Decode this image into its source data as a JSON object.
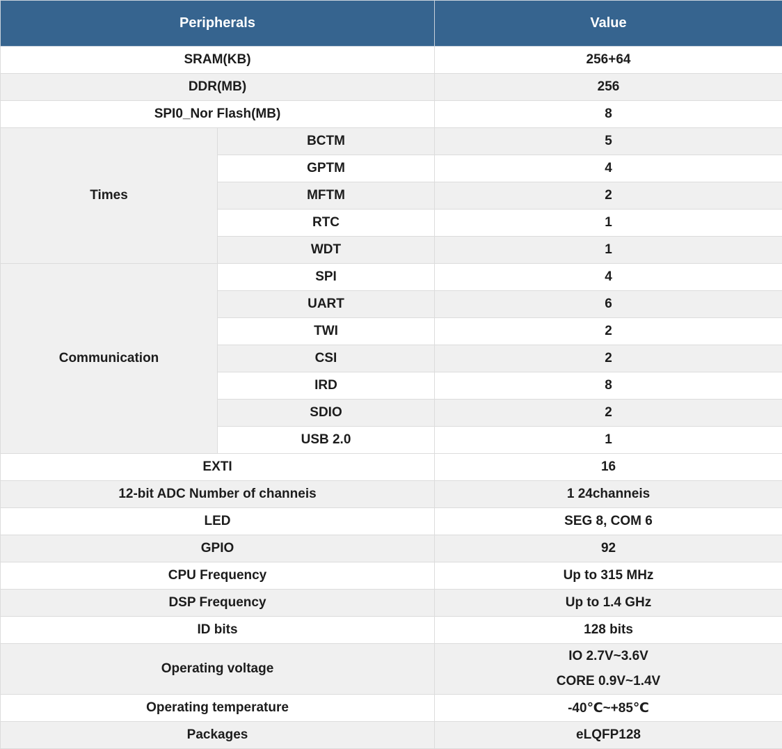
{
  "colors": {
    "header_bg": "#36648f",
    "header_text": "#ffffff",
    "alt_row_bg": "#f0f0f0",
    "border": "#dcdcdc",
    "body_text": "#1c1c1c"
  },
  "header": {
    "peripherals": "Peripherals",
    "value": "Value"
  },
  "rows_top": [
    {
      "label": "SRAM(KB)",
      "value": "256+64"
    },
    {
      "label": "DDR(MB)",
      "value": "256"
    },
    {
      "label": "SPI0_Nor Flash(MB)",
      "value": "8"
    }
  ],
  "times_group": {
    "label": "Times",
    "items": [
      {
        "label": "BCTM",
        "value": "5"
      },
      {
        "label": "GPTM",
        "value": "4"
      },
      {
        "label": "MFTM",
        "value": "2"
      },
      {
        "label": "RTC",
        "value": "1"
      },
      {
        "label": "WDT",
        "value": "1"
      }
    ]
  },
  "communication_group": {
    "label": "Communication",
    "items": [
      {
        "label": "SPI",
        "value": "4"
      },
      {
        "label": "UART",
        "value": "6"
      },
      {
        "label": "TWI",
        "value": "2"
      },
      {
        "label": "CSI",
        "value": "2"
      },
      {
        "label": "IRD",
        "value": "8"
      },
      {
        "label": "SDIO",
        "value": "2"
      },
      {
        "label": "USB 2.0",
        "value": "1"
      }
    ]
  },
  "rows_bottom": [
    {
      "label": "EXTI",
      "value": "16"
    },
    {
      "label": "12-bit ADC Number of channeis",
      "value": "1 24channeis"
    },
    {
      "label": "LED",
      "value": "SEG 8, COM 6"
    },
    {
      "label": "GPIO",
      "value": "92"
    },
    {
      "label": "CPU Frequency",
      "value": "Up to 315 MHz"
    },
    {
      "label": "DSP Frequency",
      "value": "Up to 1.4 GHz"
    },
    {
      "label": "ID bits",
      "value": "128 bits"
    }
  ],
  "operating_voltage": {
    "label": "Operating voltage",
    "value_lines": [
      "IO 2.7V~3.6V",
      "CORE 0.9V~1.4V"
    ]
  },
  "rows_last": [
    {
      "label": "Operating temperature",
      "value": "-40℃~+85℃"
    },
    {
      "label": "Packages",
      "value": "eLQFP128"
    }
  ]
}
